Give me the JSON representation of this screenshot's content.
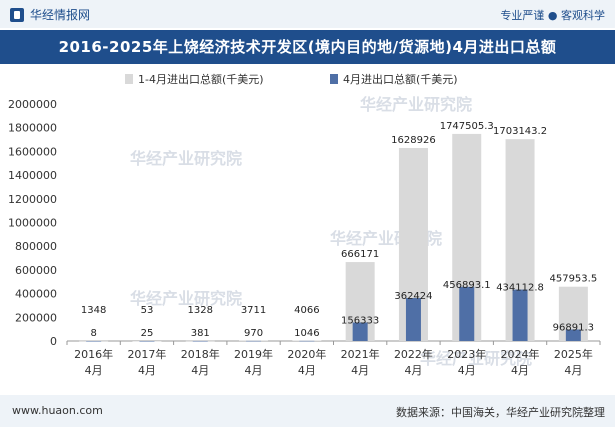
{
  "header": {
    "brand": "华经情报网",
    "slogan": "专业严谨 ● 客观科学"
  },
  "title": "2016-2025年上饶经济技术开发区(境内目的地/货源地)4月进出口总额",
  "footer": {
    "url": "www.huaon.com",
    "source": "数据来源：中国海关，华经产业研究院整理"
  },
  "watermark": "华经产业研究院",
  "colors": {
    "header_bg": "#1f4e8c",
    "cumulative": "#d9d9d9",
    "monthly": "#4f6fa6"
  },
  "chart_data": {
    "type": "bar",
    "categories": [
      "2016年\n4月",
      "2017年\n4月",
      "2018年\n4月",
      "2019年\n4月",
      "2020年\n4月",
      "2021年\n4月",
      "2022年\n4月",
      "2023年\n4月",
      "2024年\n4月",
      "2025年\n4月"
    ],
    "series": [
      {
        "name": "1-4月进出口总额(千美元)",
        "values": [
          1348,
          53,
          1328,
          3711,
          4066,
          666171,
          1628926,
          1747505.3,
          1703143.2,
          457953.5
        ],
        "labels": [
          "1348",
          "53",
          "1328",
          "3711",
          "4066",
          "666171",
          "1628926",
          "1747505.3",
          "1703143.2",
          "457953.5"
        ]
      },
      {
        "name": "4月进出口总额(千美元)",
        "values": [
          8,
          25,
          381,
          970,
          1046,
          156333,
          362424,
          456893.1,
          434112.8,
          96891.3
        ],
        "labels": [
          "8",
          "25",
          "381",
          "970",
          "1046",
          "156333",
          "362424",
          "456893.1",
          "434112.8",
          "96891.3"
        ]
      }
    ],
    "ylim": [
      0,
      2000000
    ],
    "yticks": [
      "0",
      "200000",
      "400000",
      "600000",
      "800000",
      "1000000",
      "1200000",
      "1400000",
      "1600000",
      "1800000",
      "2000000"
    ],
    "legend": "top",
    "grid": false
  }
}
